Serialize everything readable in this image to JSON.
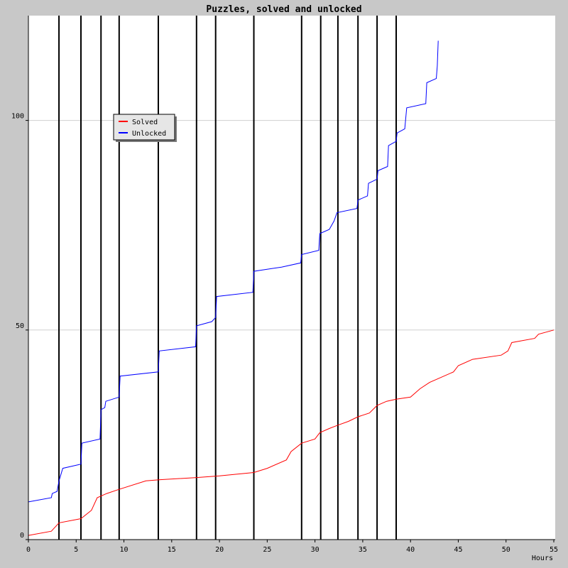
{
  "chart_data": {
    "type": "line",
    "title": "Puzzles, solved and unlocked",
    "xlabel": "Hours",
    "ylabel": "",
    "xlim": [
      0,
      55
    ],
    "ylim": [
      0,
      125
    ],
    "x_ticks": [
      0,
      5,
      10,
      15,
      20,
      25,
      30,
      35,
      40,
      45,
      50,
      55
    ],
    "y_ticks": [
      0,
      50,
      100
    ],
    "grid": {
      "horizontal": true,
      "vertical": false
    },
    "legend_position": "top-left",
    "event_markers_x": [
      3.2,
      5.5,
      7.6,
      9.5,
      13.6,
      17.6,
      19.6,
      23.6,
      28.6,
      30.6,
      32.4,
      34.5,
      36.5,
      38.5
    ],
    "series": [
      {
        "name": "Solved",
        "color": "#ff0000",
        "points": [
          [
            0,
            1
          ],
          [
            2.4,
            2
          ],
          [
            3.2,
            4
          ],
          [
            5.5,
            5
          ],
          [
            6.6,
            7
          ],
          [
            7.2,
            10
          ],
          [
            8.2,
            11
          ],
          [
            9.5,
            12
          ],
          [
            12.3,
            14
          ],
          [
            13.8,
            14.3
          ],
          [
            17.6,
            14.8
          ],
          [
            20.0,
            15.2
          ],
          [
            23.6,
            16.0
          ],
          [
            25.0,
            17.0
          ],
          [
            27.0,
            19.0
          ],
          [
            27.5,
            21.0
          ],
          [
            28.6,
            23.0
          ],
          [
            30.0,
            24.0
          ],
          [
            30.5,
            25.5
          ],
          [
            31.5,
            26.5
          ],
          [
            32.4,
            27.3
          ],
          [
            33.5,
            28.2
          ],
          [
            34.5,
            29.3
          ],
          [
            35.7,
            30.2
          ],
          [
            36.5,
            32.0
          ],
          [
            37.5,
            33.0
          ],
          [
            38.5,
            33.5
          ],
          [
            40.0,
            34.0
          ],
          [
            41.0,
            36.0
          ],
          [
            42.0,
            37.5
          ],
          [
            43.0,
            38.5
          ],
          [
            44.5,
            40.0
          ],
          [
            45.0,
            41.5
          ],
          [
            46.5,
            43.0
          ],
          [
            49.5,
            44.0
          ],
          [
            50.2,
            45.0
          ],
          [
            50.6,
            47.0
          ],
          [
            53.0,
            48.0
          ],
          [
            53.4,
            49.0
          ],
          [
            55.0,
            50.0
          ]
        ]
      },
      {
        "name": "Unlocked",
        "color": "#0000ff",
        "points": [
          [
            0,
            9
          ],
          [
            2.4,
            10
          ],
          [
            2.5,
            11
          ],
          [
            3.0,
            11.5
          ],
          [
            3.2,
            14
          ],
          [
            3.6,
            17
          ],
          [
            5.5,
            18
          ],
          [
            5.6,
            23
          ],
          [
            7.5,
            24
          ],
          [
            7.6,
            31
          ],
          [
            8.0,
            31.5
          ],
          [
            8.1,
            33
          ],
          [
            9.5,
            34
          ],
          [
            9.6,
            39
          ],
          [
            13.6,
            40
          ],
          [
            13.7,
            45
          ],
          [
            17.5,
            46
          ],
          [
            17.6,
            51
          ],
          [
            19.2,
            52
          ],
          [
            19.6,
            53
          ],
          [
            19.7,
            58
          ],
          [
            23.5,
            59
          ],
          [
            23.6,
            64
          ],
          [
            26.5,
            65
          ],
          [
            28.5,
            66
          ],
          [
            28.6,
            68
          ],
          [
            30.4,
            69
          ],
          [
            30.5,
            73
          ],
          [
            31.5,
            74
          ],
          [
            32.0,
            76
          ],
          [
            32.3,
            78
          ],
          [
            34.4,
            79
          ],
          [
            34.5,
            81
          ],
          [
            35.5,
            82
          ],
          [
            35.6,
            85
          ],
          [
            36.5,
            86
          ],
          [
            36.6,
            88
          ],
          [
            37.6,
            89
          ],
          [
            37.7,
            94
          ],
          [
            38.5,
            95
          ],
          [
            38.6,
            97
          ],
          [
            39.4,
            98
          ],
          [
            39.6,
            103
          ],
          [
            41.6,
            104
          ],
          [
            41.7,
            109
          ],
          [
            42.7,
            110
          ],
          [
            42.8,
            113
          ],
          [
            42.9,
            119
          ]
        ]
      }
    ]
  }
}
